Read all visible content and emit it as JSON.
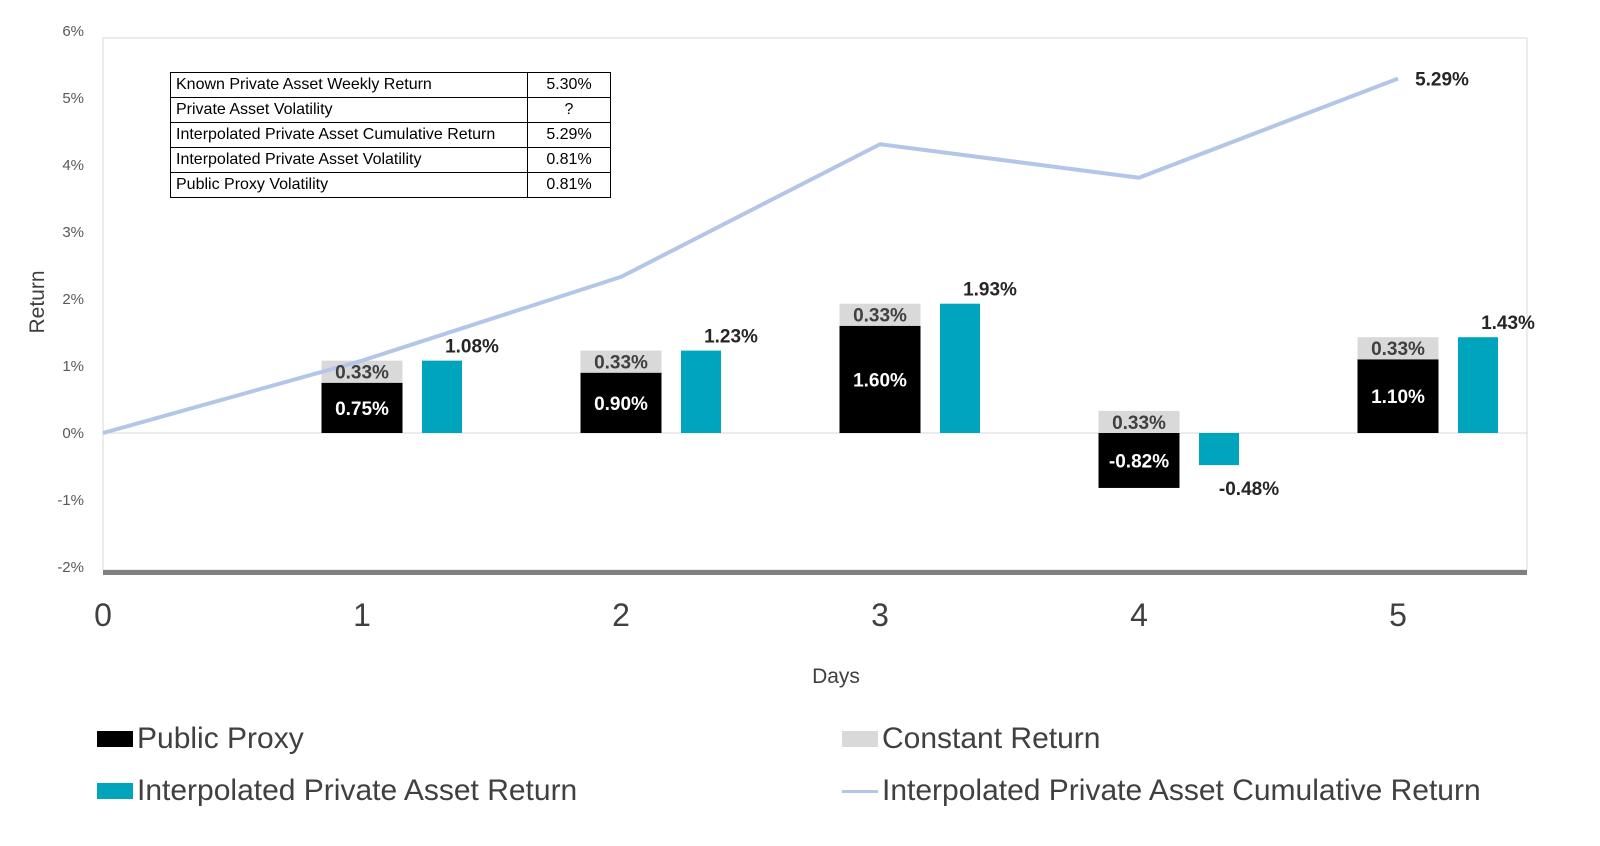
{
  "chart_data": {
    "type": "bar",
    "xlabel": "Days",
    "ylabel": "Return",
    "x_categories": [
      "0",
      "1",
      "2",
      "3",
      "4",
      "5"
    ],
    "ylim": [
      -2,
      6
    ],
    "yticks": [
      "-2%",
      "-1%",
      "0%",
      "1%",
      "2%",
      "3%",
      "4%",
      "5%",
      "6%"
    ],
    "series": [
      {
        "name": "Public Proxy",
        "color": "#000000",
        "x": [
          1,
          2,
          3,
          4,
          5
        ],
        "values": [
          0.75,
          0.9,
          1.6,
          -0.82,
          1.1
        ],
        "labels": [
          "0.75%",
          "0.90%",
          "1.60%",
          "-0.82%",
          "1.10%"
        ]
      },
      {
        "name": "Constant Return",
        "color": "#d9d9d9",
        "x": [
          1,
          2,
          3,
          4,
          5
        ],
        "values": [
          0.33,
          0.33,
          0.33,
          0.33,
          0.33
        ],
        "labels": [
          "0.33%",
          "0.33%",
          "0.33%",
          "0.33%",
          "0.33%"
        ]
      },
      {
        "name": "Interpolated Private Asset Return",
        "color": "#00a5bd",
        "x": [
          1,
          2,
          3,
          4,
          5
        ],
        "values": [
          1.08,
          1.23,
          1.93,
          -0.48,
          1.43
        ],
        "labels": [
          "1.08%",
          "1.23%",
          "1.93%",
          "-0.48%",
          "1.43%"
        ]
      },
      {
        "name": "Interpolated Private Asset Cumulative Return",
        "type": "line",
        "color": "#b4c6e7",
        "x": [
          0,
          1,
          2,
          3,
          4,
          5
        ],
        "values": [
          0,
          1.08,
          2.33,
          4.31,
          3.81,
          5.29
        ],
        "end_label": "5.29%"
      }
    ],
    "legend_position": "bottom",
    "grid": false
  },
  "table": {
    "rows": [
      {
        "label": "Known Private Asset Weekly Return",
        "value": "5.30%"
      },
      {
        "label": "Private Asset Volatility",
        "value": "?"
      },
      {
        "label": "Interpolated Private Asset Cumulative Return",
        "value": "5.29%"
      },
      {
        "label": "Interpolated Private Asset Volatility",
        "value": "0.81%"
      },
      {
        "label": "Public Proxy Volatility",
        "value": "0.81%"
      }
    ]
  },
  "legend": [
    {
      "label": "Public Proxy",
      "color": "#000000",
      "kind": "box"
    },
    {
      "label": "Constant Return",
      "color": "#d9d9d9",
      "kind": "box"
    },
    {
      "label": "Interpolated Private Asset Return",
      "color": "#00a5bd",
      "kind": "box"
    },
    {
      "label": "Interpolated Private Asset Cumulative Return",
      "color": "#b4c6e7",
      "kind": "line"
    }
  ]
}
